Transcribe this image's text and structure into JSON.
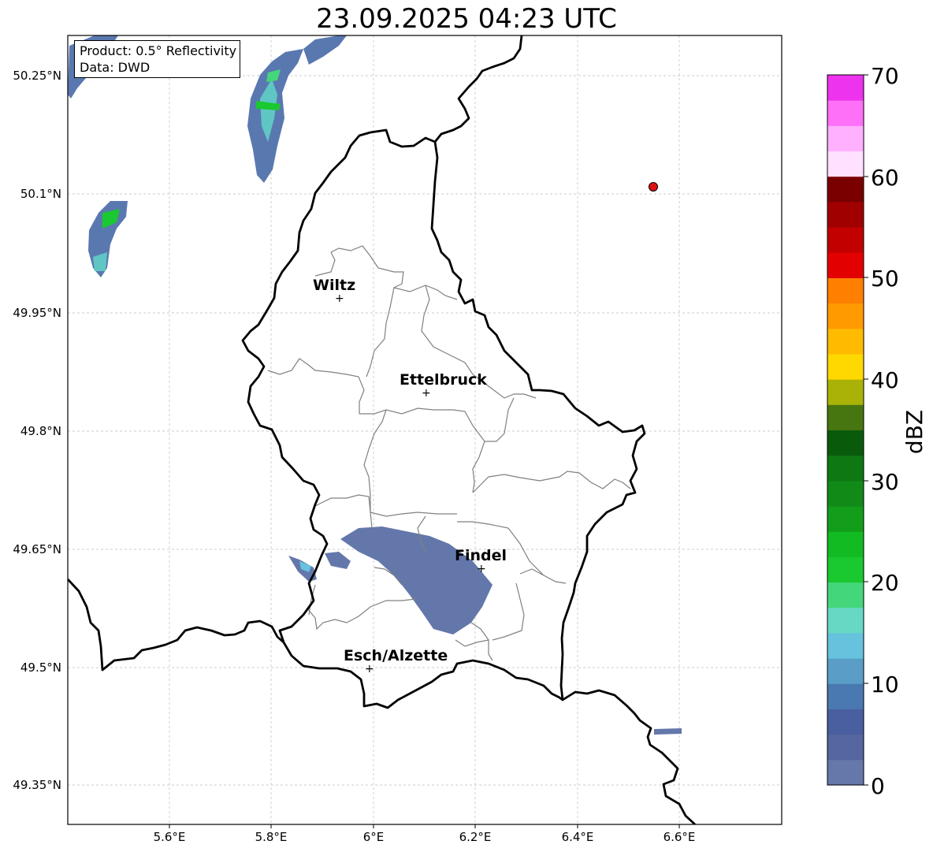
{
  "title": "23.09.2025 04:23 UTC",
  "info": {
    "product": "Product: 0.5° Reflectivity",
    "source": "Data: DWD"
  },
  "map": {
    "lon_labels": [
      "5.6°E",
      "5.8°E",
      "6°E",
      "6.2°E",
      "6.4°E",
      "6.6°E"
    ],
    "lat_labels": [
      "50.25°N",
      "50.1°N",
      "49.95°N",
      "49.8°N",
      "49.65°N",
      "49.5°N",
      "49.35°N"
    ],
    "cities": [
      {
        "name": "Wiltz",
        "lon": 5.93,
        "lat": 49.966
      },
      {
        "name": "Ettelbruck",
        "lon": 6.1,
        "lat": 49.847
      },
      {
        "name": "Findel",
        "lon": 6.21,
        "lat": 49.627
      },
      {
        "name": "Esch/Alzette",
        "lon": 5.99,
        "lat": 49.497
      }
    ],
    "radar_site": {
      "lon": 6.547,
      "lat": 50.109,
      "color": "#dd1111"
    }
  },
  "colorbar": {
    "label": "dBZ",
    "ticks": [
      "70",
      "60",
      "50",
      "40",
      "30",
      "20",
      "10",
      "0"
    ],
    "colors": [
      "#6677aa",
      "#5566a0",
      "#4a5fa0",
      "#4a78b0",
      "#5a9ec8",
      "#66c2dd",
      "#66d8c4",
      "#44d67a",
      "#1ac830",
      "#12bb22",
      "#129e1a",
      "#118a18",
      "#0e7812",
      "#0a5a0c",
      "#477510",
      "#aab208",
      "#ffd800",
      "#ffbb00",
      "#ff9a00",
      "#ff7f00",
      "#e30000",
      "#c20000",
      "#a00000",
      "#7a0000",
      "#ffe0ff",
      "#ffb0ff",
      "#ff70f8",
      "#ee33ee"
    ]
  }
}
